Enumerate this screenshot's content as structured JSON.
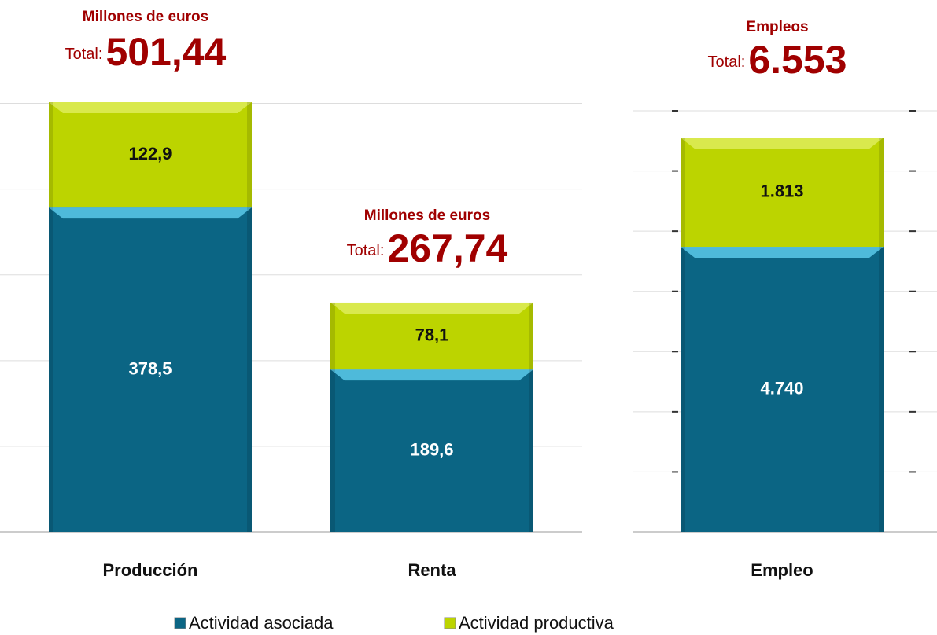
{
  "chart_data": [
    {
      "type": "bar",
      "stacked": true,
      "categories": [
        "Producción",
        "Renta"
      ],
      "series": [
        {
          "name": "Actividad asociada",
          "color": "#0b6584",
          "values": [
            378.5,
            189.6
          ],
          "value_labels": [
            "378,5",
            "189,6"
          ]
        },
        {
          "name": "Actividad productiva",
          "color": "#bcd400",
          "values": [
            122.9,
            78.1
          ],
          "value_labels": [
            "122,9",
            "78,1"
          ]
        }
      ],
      "totals": [
        {
          "unit": "Millones de euros",
          "prefix": "Total:",
          "value": 501.44,
          "label": "501,44"
        },
        {
          "unit": "Millones de euros",
          "prefix": "Total:",
          "value": 267.74,
          "label": "267,74"
        }
      ],
      "ylim": [
        0,
        550
      ],
      "yticks": [
        0,
        100,
        200,
        300,
        400,
        500
      ],
      "grid": true
    },
    {
      "type": "bar",
      "stacked": true,
      "categories": [
        "Empleo"
      ],
      "series": [
        {
          "color": "#0b6584",
          "values": [
            4740
          ],
          "value_labels": [
            "4.740"
          ]
        },
        {
          "color": "#bcd400",
          "values": [
            1813
          ],
          "value_labels": [
            "1.813"
          ]
        }
      ],
      "totals": [
        {
          "unit": "Empleos",
          "prefix": "Total:",
          "value": 6553,
          "label": "6.553"
        }
      ],
      "ylim": [
        0,
        7000
      ],
      "yticks": [
        0,
        1000,
        2000,
        3000,
        4000,
        5000,
        6000,
        7000
      ],
      "grid": true
    }
  ]
}
